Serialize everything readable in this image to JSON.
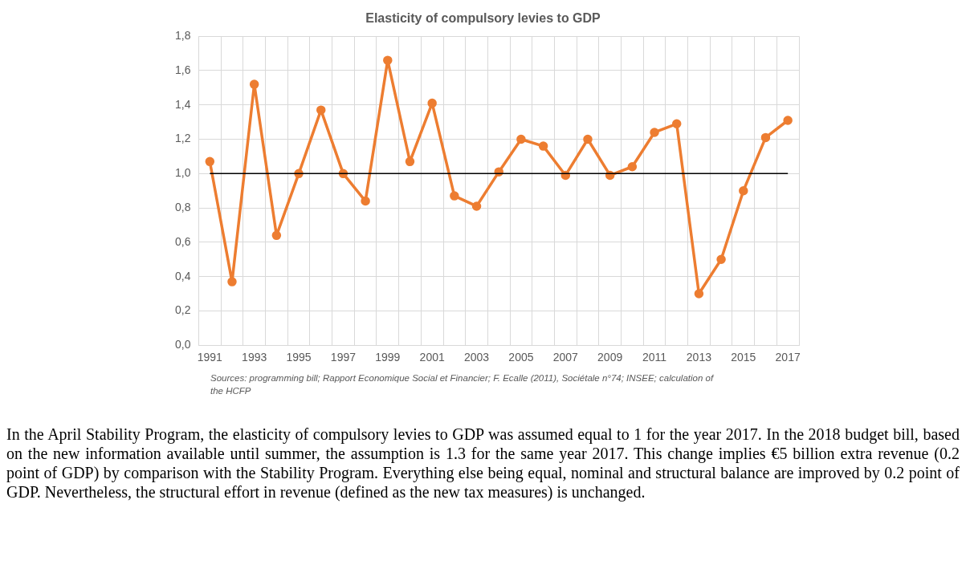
{
  "chart_data": {
    "type": "line",
    "title": "Elasticity of compulsory levies to GDP",
    "categories": [
      "1991",
      null,
      "1993",
      null,
      "1995",
      null,
      "1997",
      null,
      "1999",
      null,
      "2001",
      null,
      "2003",
      null,
      "2005",
      null,
      "2007",
      null,
      "2009",
      null,
      "2011",
      null,
      "2013",
      null,
      "2015",
      null,
      "2017"
    ],
    "series": [
      {
        "color": "#ed7d31",
        "values": [
          1.07,
          0.37,
          1.52,
          0.64,
          1.0,
          1.37,
          1.0,
          0.84,
          1.66,
          1.07,
          1.41,
          0.87,
          0.81,
          1.01,
          1.2,
          1.16,
          0.99,
          1.2,
          0.99,
          1.04,
          1.24,
          1.29,
          0.3,
          0.5,
          0.9,
          1.21,
          1.31
        ]
      }
    ],
    "ylim": [
      0,
      1.8
    ],
    "yticks": [
      {
        "value": 0,
        "label": "0,0"
      },
      {
        "value": 0.2,
        "label": "0,2"
      },
      {
        "value": 0.4,
        "label": "0,4"
      },
      {
        "value": 0.6,
        "label": "0,6"
      },
      {
        "value": 0.8,
        "label": "0,8"
      },
      {
        "value": 1.0,
        "label": "1,0"
      },
      {
        "value": 1.2,
        "label": "1,2"
      },
      {
        "value": 1.4,
        "label": "1,4"
      },
      {
        "value": 1.6,
        "label": "1,6"
      },
      {
        "value": 1.8,
        "label": "1,8"
      }
    ],
    "ref_lines": [
      {
        "axis": "y",
        "value": 1.0,
        "color": "#000000"
      }
    ],
    "grid": true,
    "legend": false,
    "marker": "circle",
    "line_style": "solid",
    "annotations": [
      "Sources: programming bill; Rapport Economique Social et Financier; F. Ecalle (2011), Sociétale n°74; INSEE; calculation of the HCFP",
      "In the April Stability Program, the elasticity of compulsory levies to GDP was assumed equal to 1 for the year 2017. In the 2018 budget bill, based on the new information available until summer, the assumption is 1.3 for the same year 2017. This change implies €5 billion extra revenue (0.2 point of GDP) by comparison with the Stability Program. Everything else being equal, nominal and structural balance are improved by 0.2 point of GDP. Nevertheless, the structural effort in revenue (defined as the new tax measures) is unchanged."
    ]
  }
}
